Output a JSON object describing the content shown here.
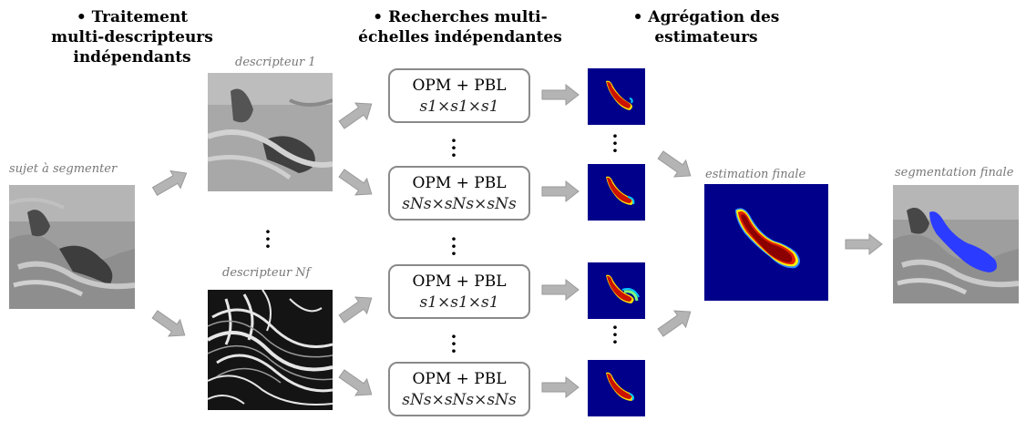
{
  "headers": {
    "col1": [
      "• Traitement",
      "multi-descripteurs",
      "indépendants"
    ],
    "col2": [
      "• Recherches multi-",
      "échelles indépendantes"
    ],
    "col3": [
      "• Agrégation des",
      "estimateurs"
    ]
  },
  "labels": {
    "subject": "sujet à segmenter",
    "descriptor1": "descripteur 1",
    "descriptorN": "descripteur Nf",
    "final_estimate": "estimation finale",
    "final_segmentation": "segmentation finale"
  },
  "boxes": [
    {
      "line1": "OPM + PBL",
      "line2": "s1×s1×s1"
    },
    {
      "line1": "OPM + PBL",
      "line2": "sNs×sNs×sNs"
    },
    {
      "line1": "OPM + PBL",
      "line2": "s1×s1×s1"
    },
    {
      "line1": "OPM + PBL",
      "line2": "sNs×sNs×sNs"
    }
  ],
  "colors": {
    "arrow": "#b4b4b4",
    "heatmap_bg": "#00008b",
    "segmentation_overlay": "#2b3bff"
  }
}
